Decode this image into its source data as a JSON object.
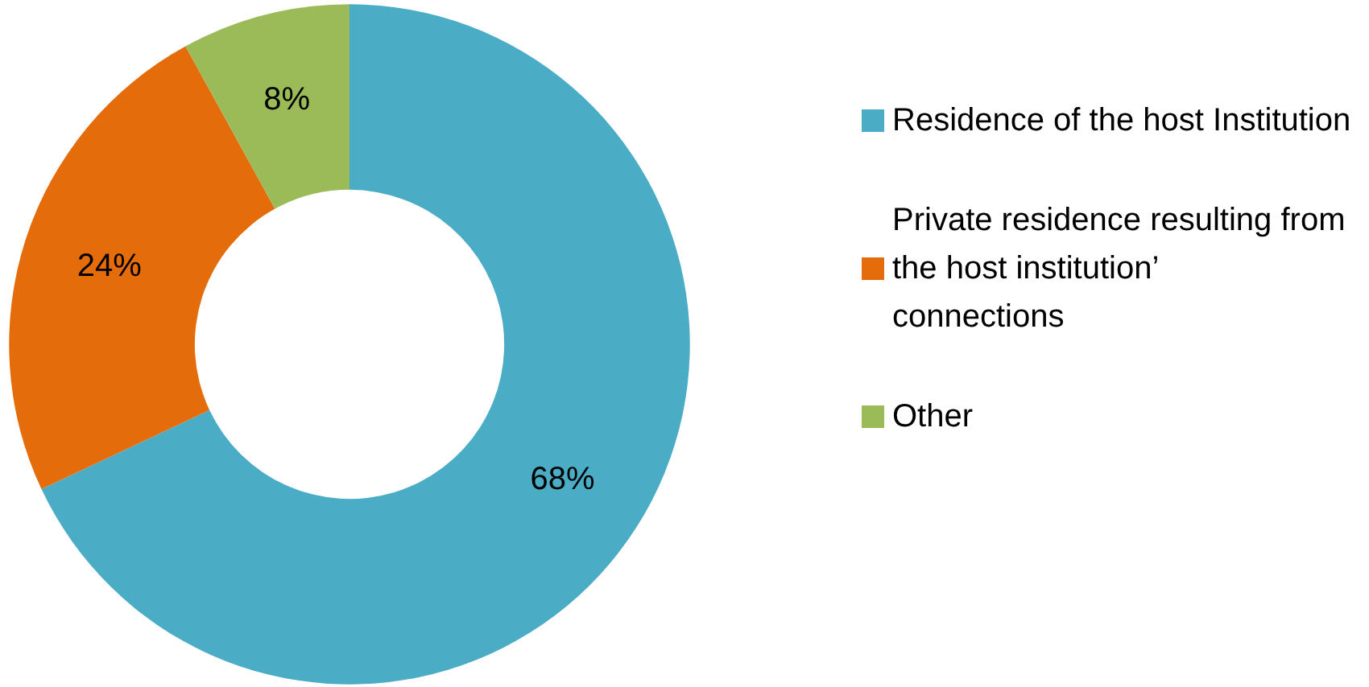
{
  "chart_data": {
    "type": "donut",
    "categories": [
      "Residence of the host Institution",
      "Private residence resulting from the host institution’ connections",
      "Other"
    ],
    "values": [
      68,
      24,
      8
    ],
    "value_labels": [
      "68%",
      "24%",
      "8%"
    ],
    "colors": [
      "#4bacc6",
      "#e46c0a",
      "#9bbb59"
    ],
    "legend": "right"
  }
}
